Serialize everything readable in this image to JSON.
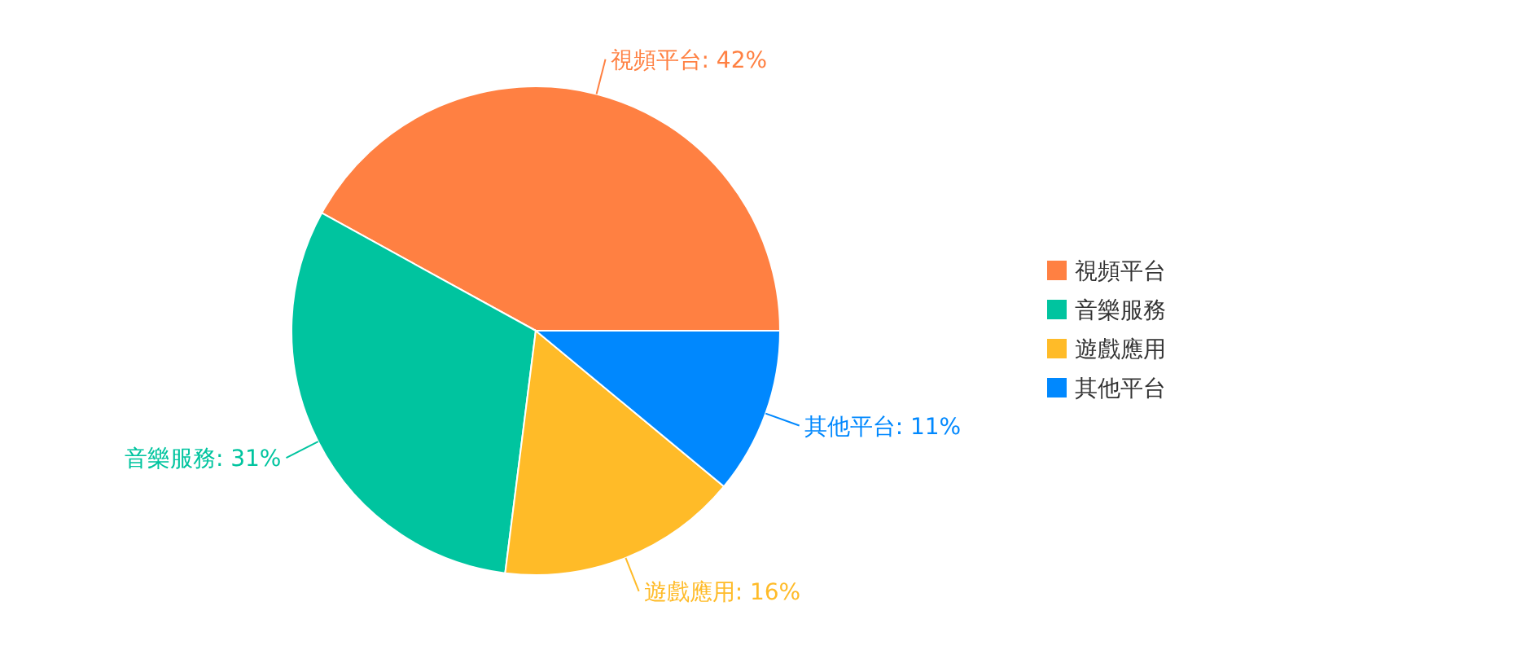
{
  "chart_data": {
    "type": "pie",
    "categories": [
      "視頻平台",
      "音樂服務",
      "遊戲應用",
      "其他平台"
    ],
    "values": [
      42,
      31,
      16,
      11
    ],
    "value_labels": [
      "視頻平台: 42%",
      "音樂服務: 31%",
      "遊戲應用: 16%",
      "其他平台: 11%"
    ],
    "colors": [
      "#ff8042",
      "#00c49f",
      "#ffbb28",
      "#0088fe"
    ],
    "legend": "right"
  }
}
